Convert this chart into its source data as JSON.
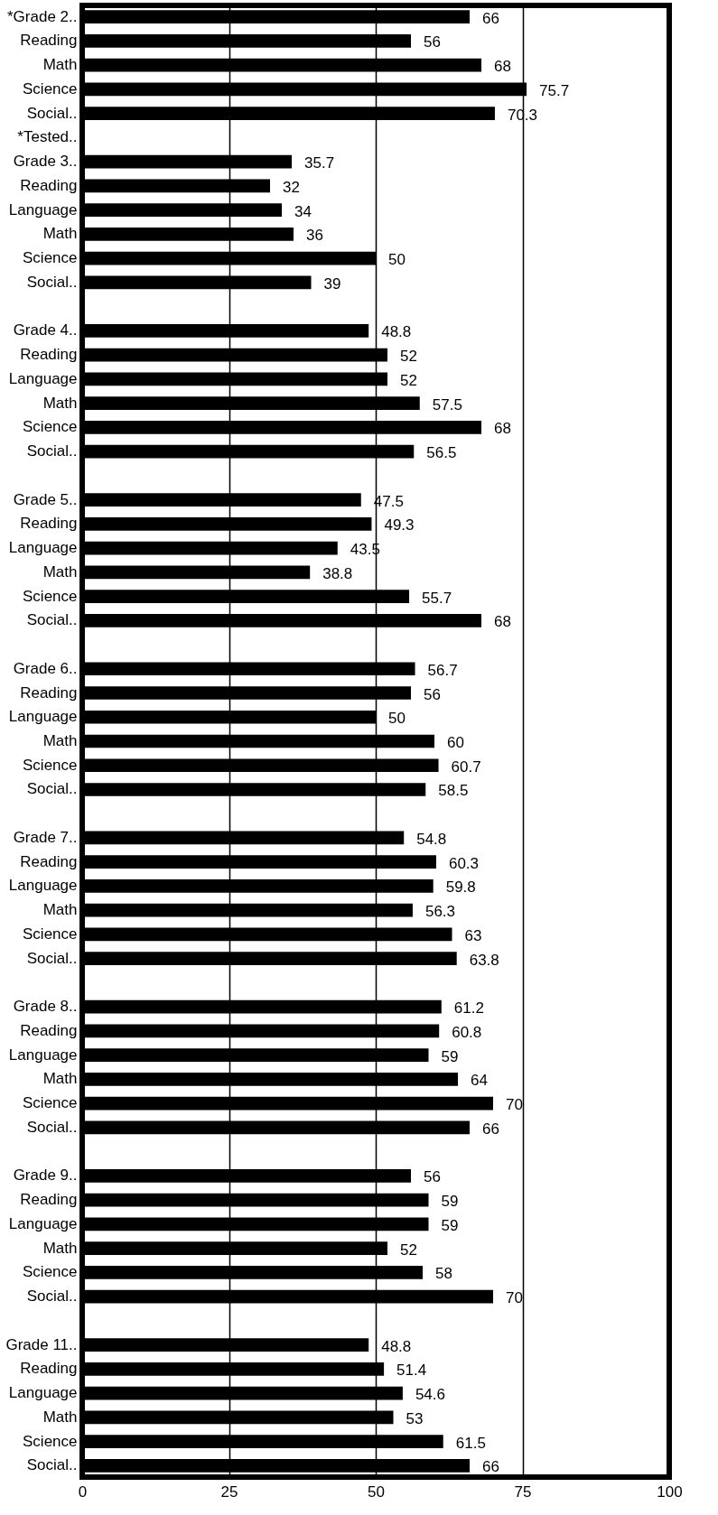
{
  "chart_data": {
    "type": "bar",
    "orientation": "horizontal",
    "categories": [
      "*Grade 2..",
      "Reading",
      "Math",
      "Science",
      "Social..",
      "*Tested..",
      "Grade 3..",
      "Reading",
      "Language",
      "Math",
      "Science",
      "Social..",
      null,
      "Grade 4..",
      "Reading",
      "Language",
      "Math",
      "Science",
      "Social..",
      null,
      "Grade 5..",
      "Reading",
      "Language",
      "Math",
      "Science",
      "Social..",
      null,
      "Grade 6..",
      "Reading",
      "Language",
      "Math",
      "Science",
      "Social..",
      null,
      "Grade 7..",
      "Reading",
      "Language",
      "Math",
      "Science",
      "Social..",
      null,
      "Grade 8..",
      "Reading",
      "Language",
      "Math",
      "Science",
      "Social..",
      null,
      "Grade 9..",
      "Reading",
      "Language",
      "Math",
      "Science",
      "Social..",
      null,
      "Grade 11..",
      "Reading",
      "Language",
      "Math",
      "Science",
      "Social.."
    ],
    "values": [
      66,
      56,
      68,
      75.7,
      70.3,
      null,
      35.7,
      32,
      34,
      36,
      50,
      39,
      null,
      48.8,
      52,
      52,
      57.5,
      68,
      56.5,
      null,
      47.5,
      49.3,
      43.5,
      38.8,
      55.7,
      68,
      null,
      56.7,
      56,
      50,
      60,
      60.7,
      58.5,
      null,
      54.8,
      60.3,
      59.8,
      56.3,
      63,
      63.8,
      null,
      61.2,
      60.8,
      59,
      64,
      70,
      66,
      null,
      56,
      59,
      59,
      52,
      58,
      70,
      null,
      48.8,
      51.4,
      54.6,
      53,
      61.5,
      66
    ],
    "color": "#000000",
    "xlim": [
      0,
      100
    ],
    "xticks": [
      0,
      25,
      50,
      75,
      100
    ],
    "grid": "x",
    "data_labels": true
  }
}
